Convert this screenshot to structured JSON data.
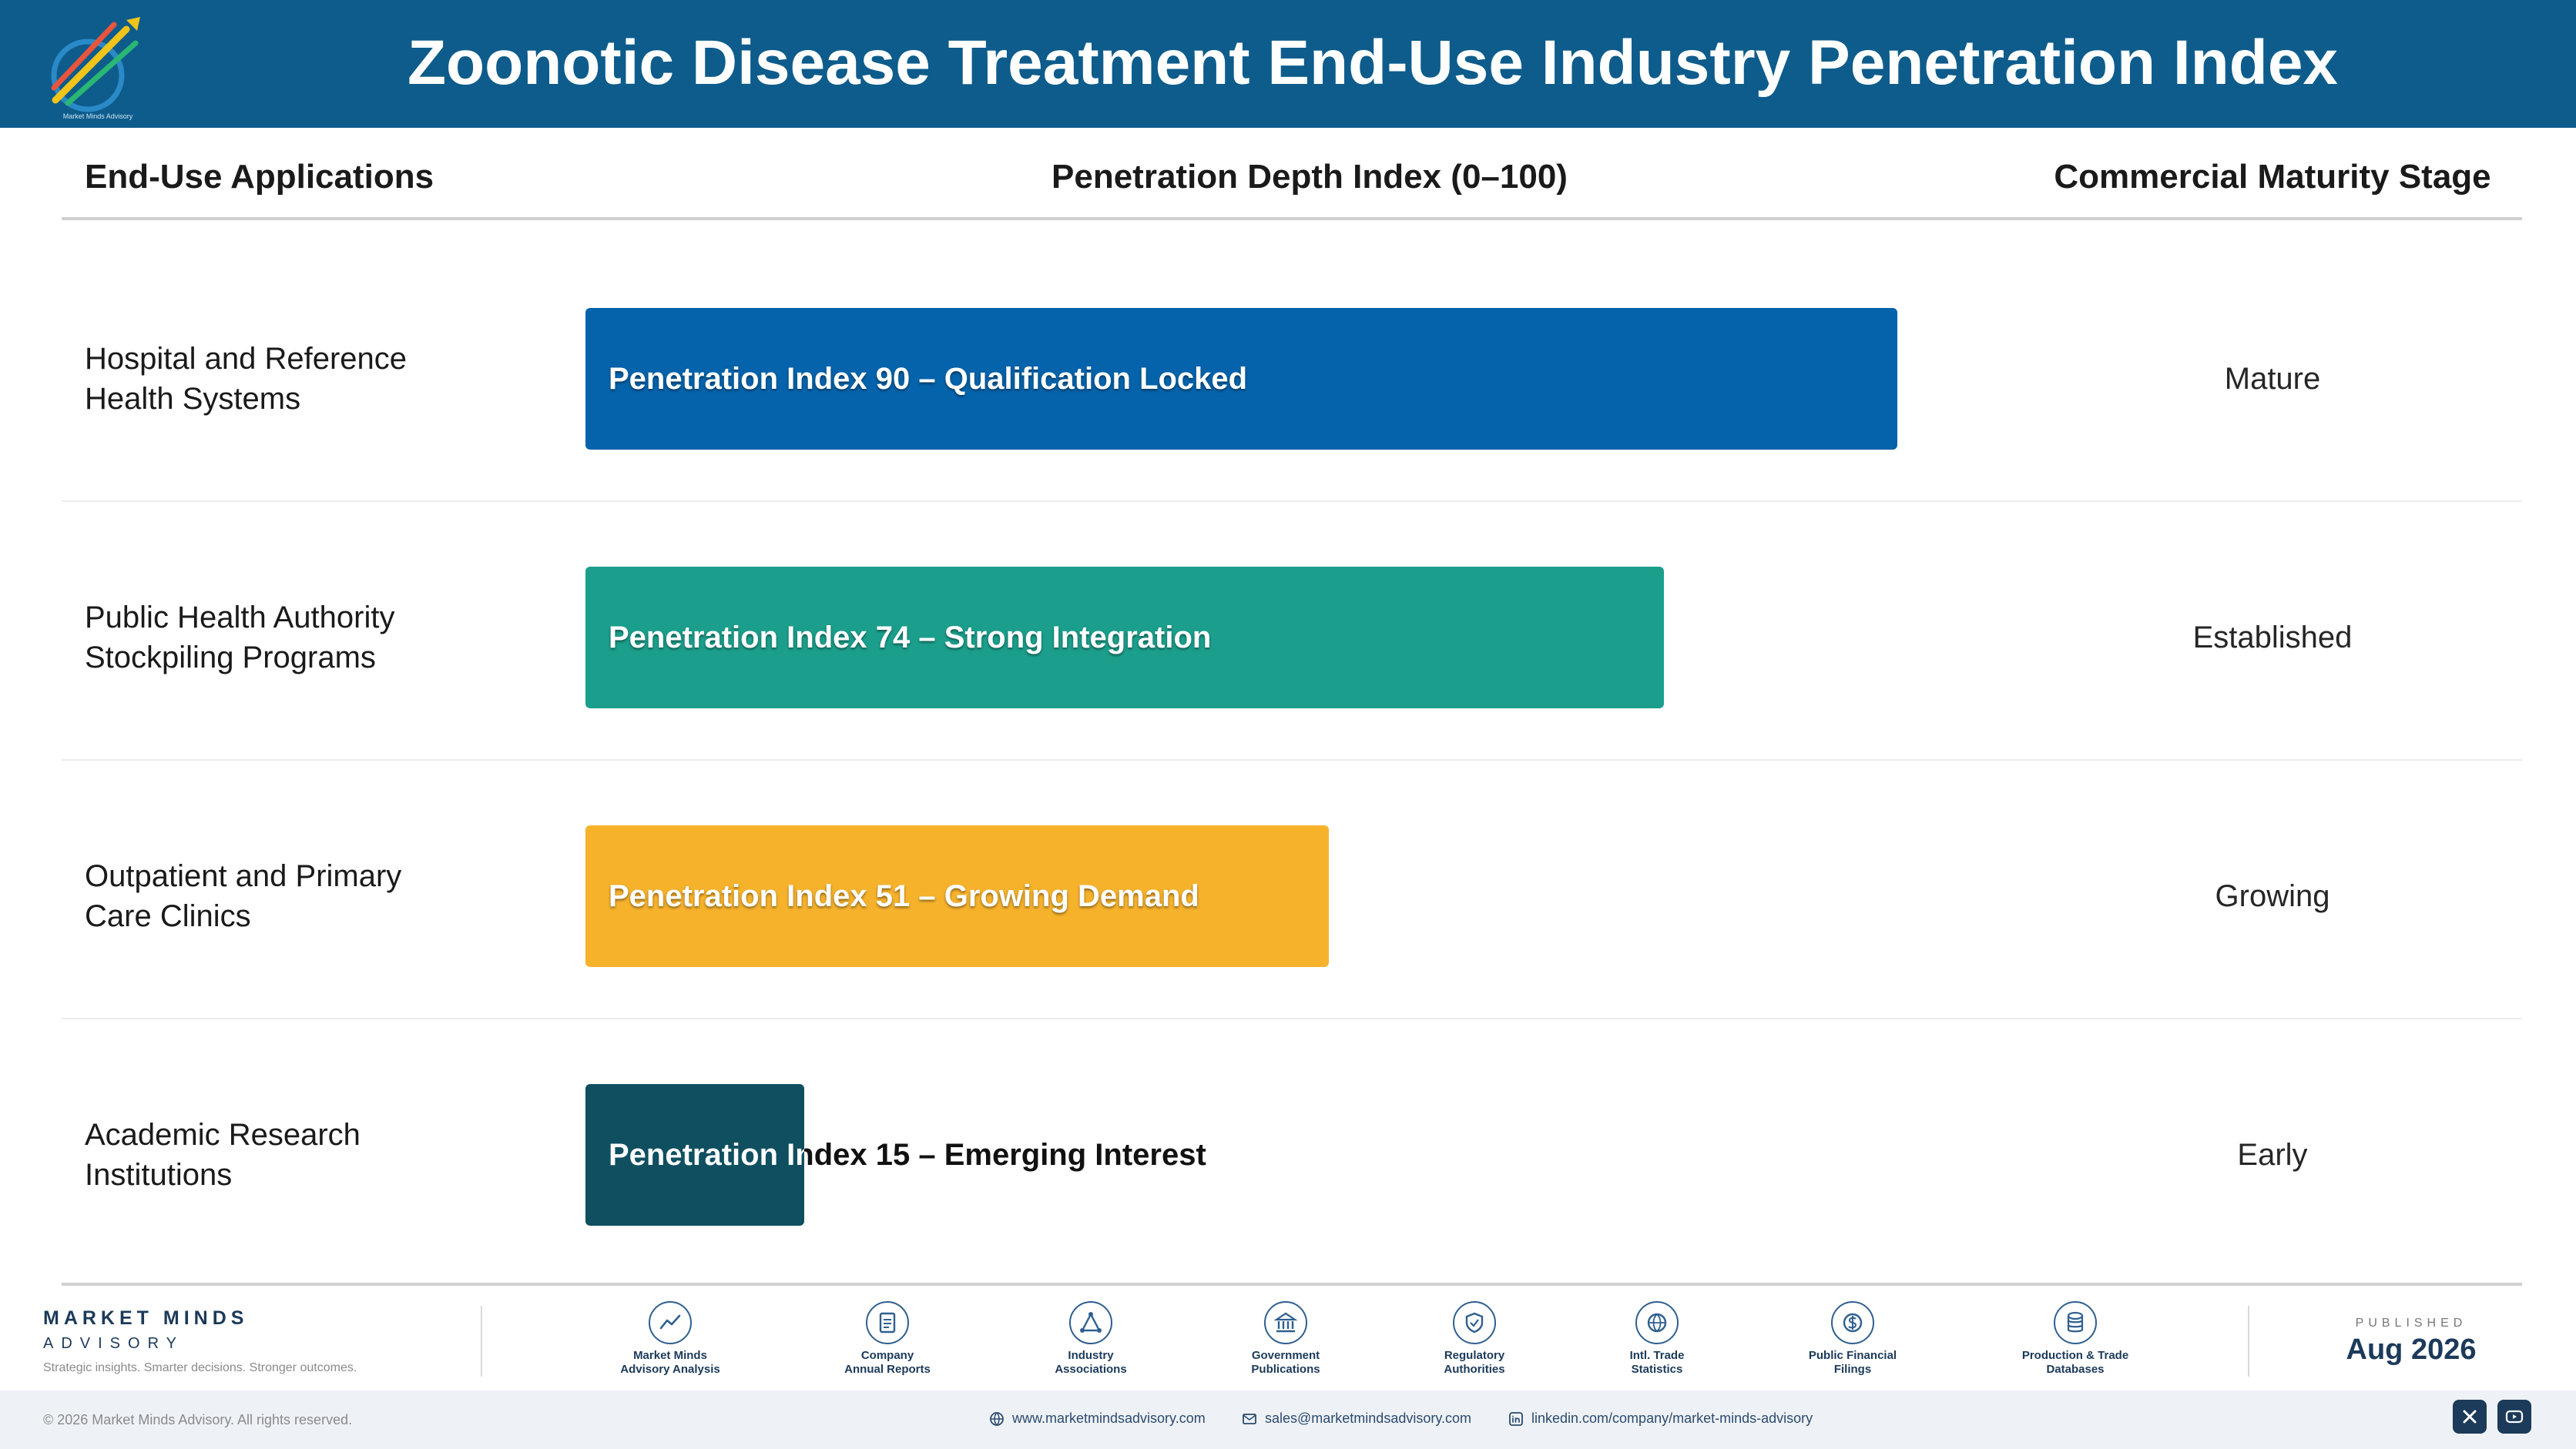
{
  "header": {
    "title": "Zoonotic Disease Treatment End-Use Industry Penetration Index",
    "logo_text": "Market Minds Advisory"
  },
  "columns": {
    "applications": "End-Use Applications",
    "index": "Penetration Depth Index (0–100)",
    "stage": "Commercial Maturity Stage"
  },
  "chart_data": {
    "type": "bar",
    "orientation": "horizontal",
    "title": "Zoonotic Disease Treatment End-Use Industry Penetration Index",
    "xlabel": "Penetration Depth Index (0–100)",
    "ylabel": "End-Use Applications",
    "xlim": [
      0,
      100
    ],
    "grid": false,
    "categories": [
      "Hospital and Reference Health Systems",
      "Public Health Authority Stockpiling Programs",
      "Outpatient and Primary Care Clinics",
      "Academic Research Institutions"
    ],
    "values": [
      90,
      74,
      51,
      15
    ],
    "bar_labels": [
      "Penetration Index 90 – Qualification Locked",
      "Penetration Index 74 – Strong Integration",
      "Penetration Index 51 – Growing Demand",
      "Penetration Index 15 – Emerging Interest"
    ],
    "stages": [
      "Mature",
      "Established",
      "Growing",
      "Early"
    ],
    "colors": [
      "#0563ab",
      "#1b9f8c",
      "#f7b22c",
      "#0f4f60"
    ]
  },
  "rows_display": [
    [
      "Hospital and Reference",
      "Health Systems"
    ],
    [
      "Public Health Authority",
      "Stockpiling Programs"
    ],
    [
      "Outpatient and Primary",
      "Care Clinics"
    ],
    [
      "Academic Research",
      "Institutions"
    ]
  ],
  "footer": {
    "brand_name": "MARKET MINDS",
    "brand_sub": "ADVISORY",
    "tagline": "Strategic insights. Smarter decisions. Stronger outcomes.",
    "sources": [
      {
        "label": "Market Minds\nAdvisory Analysis",
        "icon": "chart-line-icon"
      },
      {
        "label": "Company\nAnnual Reports",
        "icon": "document-icon"
      },
      {
        "label": "Industry\nAssociations",
        "icon": "network-icon"
      },
      {
        "label": "Government\nPublications",
        "icon": "bank-icon"
      },
      {
        "label": "Regulatory\nAuthorities",
        "icon": "shield-icon"
      },
      {
        "label": "Intl. Trade\nStatistics",
        "icon": "globe-icon"
      },
      {
        "label": "Public Financial\nFilings",
        "icon": "dollar-icon"
      },
      {
        "label": "Production & Trade\nDatabases",
        "icon": "database-icon"
      }
    ],
    "published_label": "PUBLISHED",
    "published_date": "Aug 2026",
    "copyright": "© 2026 Market Minds Advisory. All rights reserved.",
    "website": "www.marketmindsadvisory.com",
    "email": "sales@marketmindsadvisory.com",
    "linkedin": "linkedin.com/company/market-minds-advisory"
  }
}
